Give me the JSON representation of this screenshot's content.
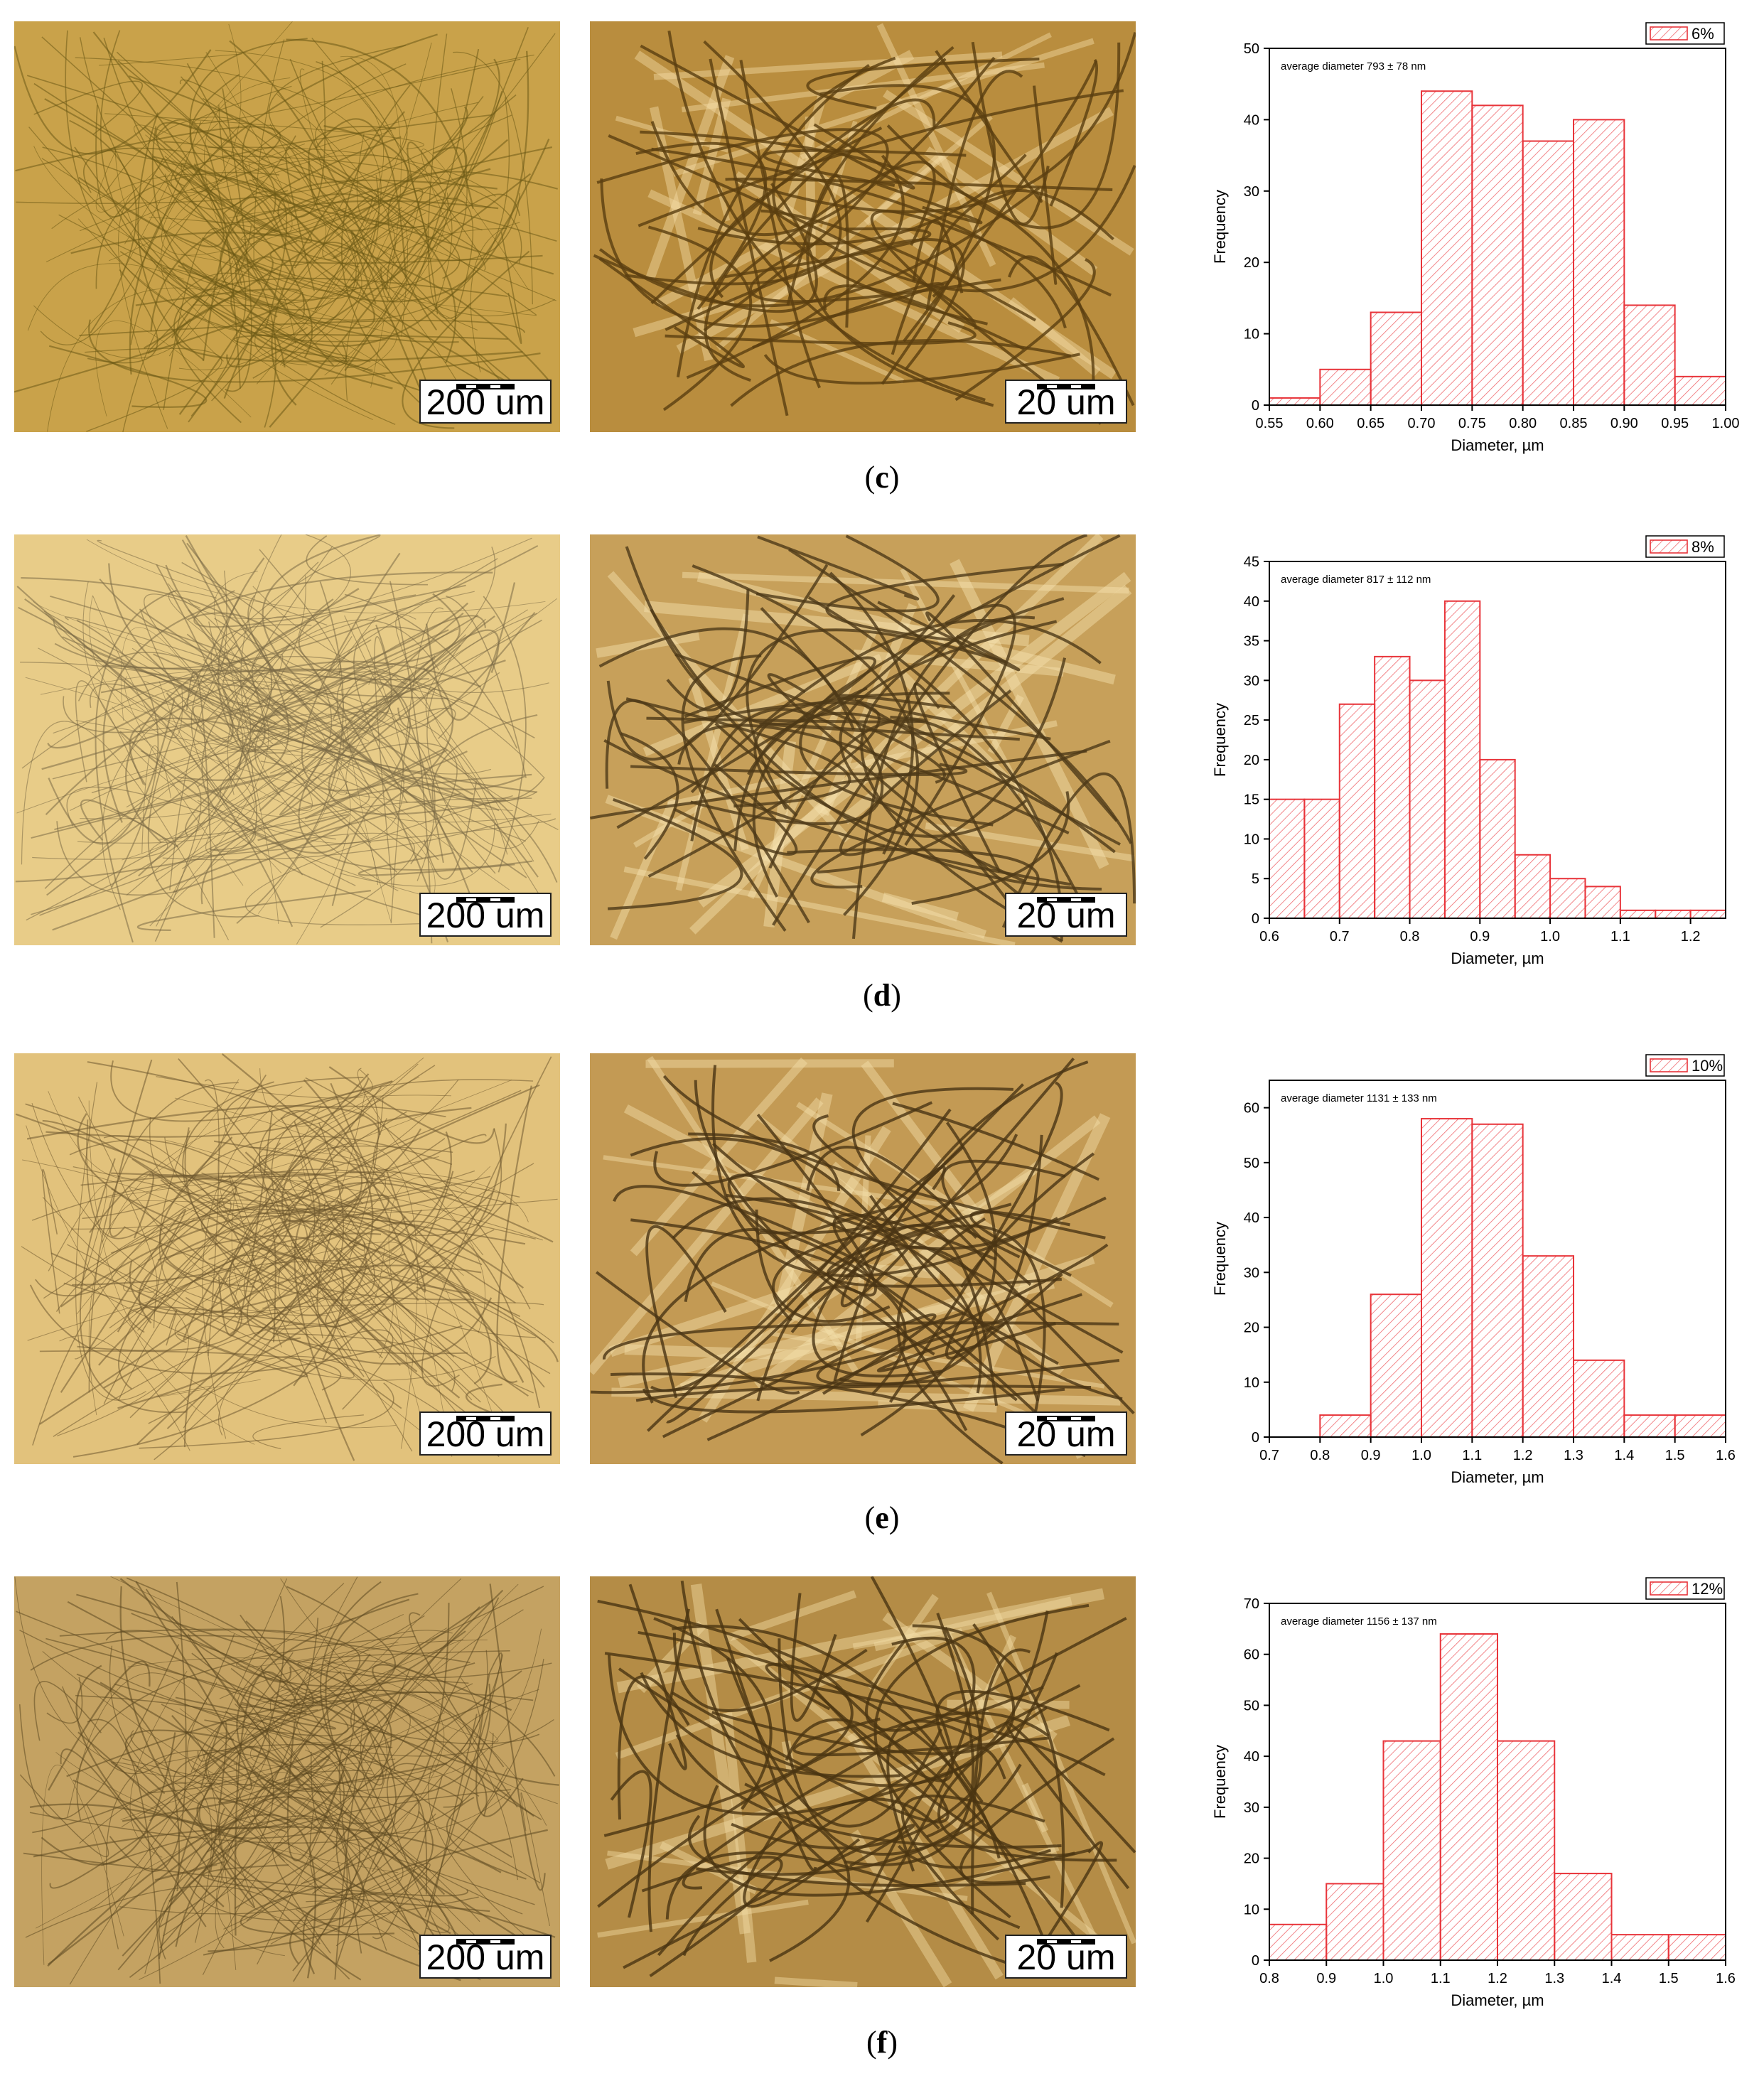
{
  "panels": [
    {
      "id": "c",
      "caption_letter": "c",
      "scale_left": "200 um",
      "scale_mid": "20 um",
      "micro_colors": {
        "bg": "#c9a24a",
        "fiber": "#6b5a16"
      },
      "mid_colors": {
        "bg": "#b98d3e",
        "fiber": "#5a3f10",
        "glow": "#f3dba4"
      },
      "chart_data": {
        "type": "bar",
        "legend": "6%",
        "annotation": "average diameter 793 ± 78 nm",
        "xlabel": "Diameter, µm",
        "ylabel": "Frequency",
        "bin_edges": [
          0.55,
          0.6,
          0.65,
          0.7,
          0.75,
          0.8,
          0.85,
          0.9,
          0.95,
          1.0
        ],
        "values": [
          1,
          5,
          13,
          44,
          42,
          37,
          40,
          14,
          4
        ],
        "xlim": [
          0.55,
          1.0
        ],
        "ylim": [
          0,
          50
        ],
        "xticks": [
          "0.55",
          "0.60",
          "0.65",
          "0.70",
          "0.75",
          "0.80",
          "0.85",
          "0.90",
          "0.95",
          "1.00"
        ],
        "xtick_values": [
          0.55,
          0.6,
          0.65,
          0.7,
          0.75,
          0.8,
          0.85,
          0.9,
          0.95,
          1.0
        ],
        "yticks": [
          0,
          10,
          20,
          30,
          40,
          50
        ]
      }
    },
    {
      "id": "d",
      "caption_letter": "d",
      "scale_left": "200 um",
      "scale_mid": "20 um",
      "micro_colors": {
        "bg": "#e8cc88",
        "fiber": "#7a6a46"
      },
      "mid_colors": {
        "bg": "#c7a05a",
        "fiber": "#4d3a18",
        "glow": "#f6e2b0"
      },
      "chart_data": {
        "type": "bar",
        "legend": "8%",
        "annotation": "average diameter 817 ± 112 nm",
        "xlabel": "Diameter, µm",
        "ylabel": "Frequency",
        "bin_edges": [
          0.6,
          0.65,
          0.7,
          0.75,
          0.8,
          0.85,
          0.9,
          0.95,
          1.0,
          1.05,
          1.1,
          1.15,
          1.2,
          1.25
        ],
        "values": [
          15,
          15,
          27,
          33,
          30,
          40,
          20,
          8,
          5,
          4,
          1,
          1,
          1
        ],
        "xlim": [
          0.6,
          1.25
        ],
        "ylim": [
          0,
          45
        ],
        "xticks": [
          "0.6",
          "0.7",
          "0.8",
          "0.9",
          "1.0",
          "1.1",
          "1.2"
        ],
        "xtick_values": [
          0.6,
          0.7,
          0.8,
          0.9,
          1.0,
          1.1,
          1.2
        ],
        "yticks": [
          0,
          5,
          10,
          15,
          20,
          25,
          30,
          35,
          40,
          45
        ]
      }
    },
    {
      "id": "e",
      "caption_letter": "e",
      "scale_left": "200 um",
      "scale_mid": "20 um",
      "micro_colors": {
        "bg": "#e2c27c",
        "fiber": "#6f5a30"
      },
      "mid_colors": {
        "bg": "#c39a54",
        "fiber": "#4a3514",
        "glow": "#f5dfaa"
      },
      "chart_data": {
        "type": "bar",
        "legend": "10%",
        "annotation": "average diameter 1131 ± 133 nm",
        "xlabel": "Diameter, µm",
        "ylabel": "Frequency",
        "bin_edges": [
          0.8,
          0.9,
          1.0,
          1.1,
          1.2,
          1.3,
          1.4,
          1.5,
          1.6
        ],
        "values": [
          4,
          26,
          58,
          57,
          33,
          14,
          4,
          4
        ],
        "xlim": [
          0.7,
          1.6
        ],
        "ylim": [
          0,
          65
        ],
        "xticks": [
          "0.7",
          "0.8",
          "0.9",
          "1.0",
          "1.1",
          "1.2",
          "1.3",
          "1.4",
          "1.5",
          "1.6"
        ],
        "xtick_values": [
          0.7,
          0.8,
          0.9,
          1.0,
          1.1,
          1.2,
          1.3,
          1.4,
          1.5,
          1.6
        ],
        "yticks": [
          0,
          10,
          20,
          30,
          40,
          50,
          60
        ]
      }
    },
    {
      "id": "f",
      "caption_letter": "f",
      "scale_left": "200 um",
      "scale_mid": "20 um",
      "micro_colors": {
        "bg": "#c4a262",
        "fiber": "#5c4820"
      },
      "mid_colors": {
        "bg": "#b48c46",
        "fiber": "#4a3412",
        "glow": "#f2dba4"
      },
      "chart_data": {
        "type": "bar",
        "legend": "12%",
        "annotation": "average diameter 1156 ± 137 nm",
        "xlabel": "Diameter, µm",
        "ylabel": "Frequency",
        "bin_edges": [
          0.8,
          0.9,
          1.0,
          1.1,
          1.2,
          1.3,
          1.4,
          1.5,
          1.6
        ],
        "values": [
          7,
          15,
          43,
          64,
          43,
          17,
          5,
          5
        ],
        "xlim": [
          0.8,
          1.6
        ],
        "ylim": [
          0,
          70
        ],
        "xticks": [
          "0.8",
          "0.9",
          "1.0",
          "1.1",
          "1.2",
          "1.3",
          "1.4",
          "1.5",
          "1.6"
        ],
        "xtick_values": [
          0.8,
          0.9,
          1.0,
          1.1,
          1.2,
          1.3,
          1.4,
          1.5,
          1.6
        ],
        "yticks": [
          0,
          10,
          20,
          30,
          40,
          50,
          60,
          70
        ]
      }
    }
  ],
  "colors": {
    "bar_stroke": "#e8343a",
    "hatch": "#ef6a6e",
    "axis": "#000000"
  }
}
